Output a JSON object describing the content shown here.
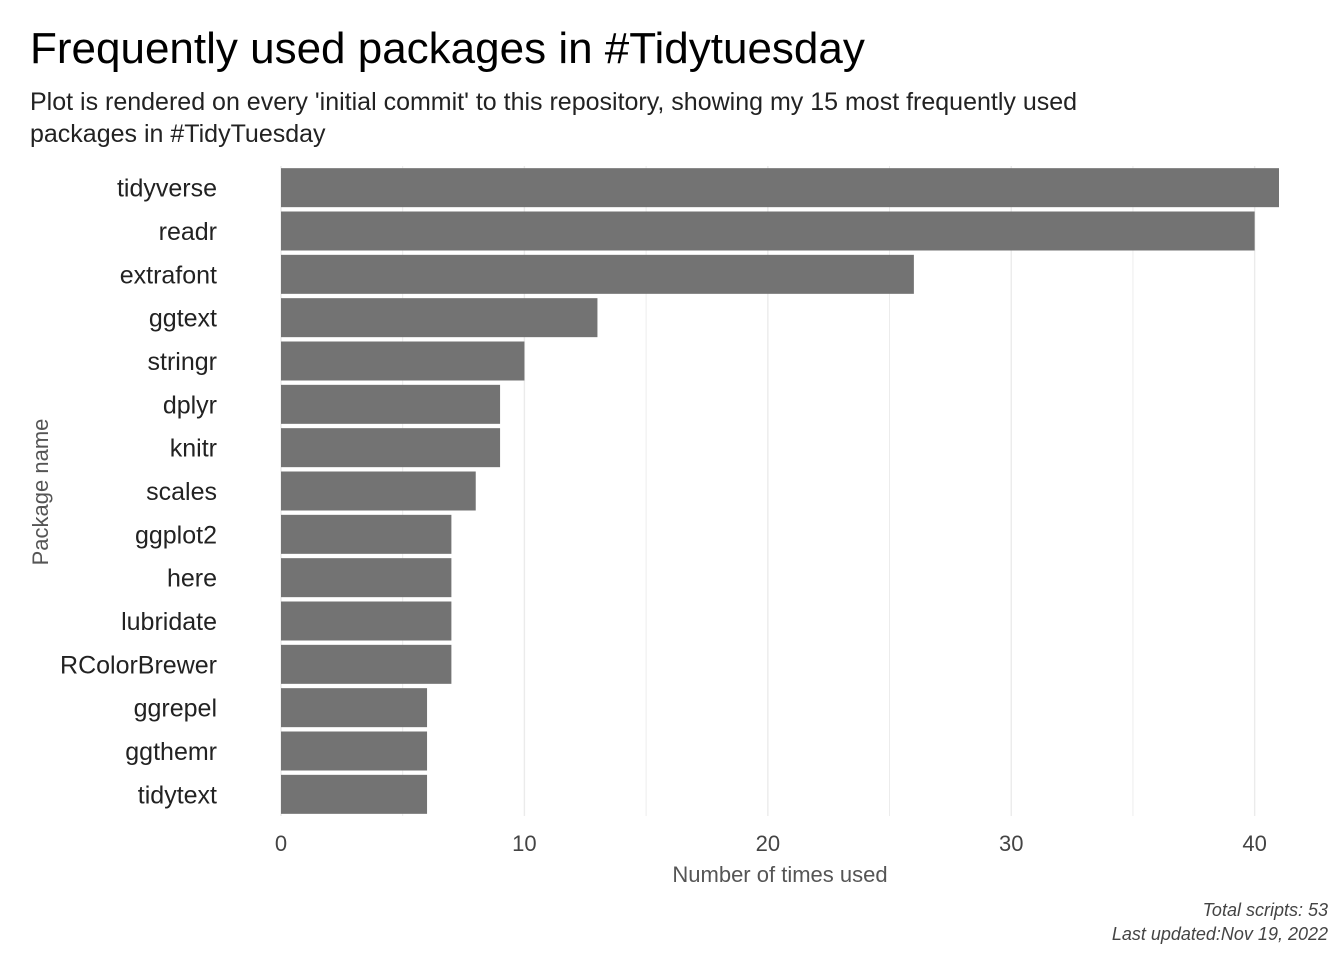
{
  "header": {
    "title": "Frequently used packages in #Tidytuesday",
    "subtitle": "Plot is rendered on every 'initial commit' to this repository, showing my 15 most frequently used packages in #TidyTuesday"
  },
  "caption": {
    "line1": "Total scripts: 53",
    "line2": "Last updated:Nov 19, 2022"
  },
  "colors": {
    "bar": "#737373",
    "grid": "#ebebeb",
    "background": "#ffffff"
  },
  "chart_data": {
    "type": "bar",
    "orientation": "horizontal",
    "categories": [
      "tidyverse",
      "readr",
      "extrafont",
      "ggtext",
      "stringr",
      "dplyr",
      "knitr",
      "scales",
      "ggplot2",
      "here",
      "lubridate",
      "RColorBrewer",
      "ggrepel",
      "ggthemr",
      "tidytext"
    ],
    "values": [
      41,
      40,
      26,
      13,
      10,
      9,
      9,
      8,
      7,
      7,
      7,
      7,
      6,
      6,
      6
    ],
    "xlabel": "Number of times used",
    "ylabel": "Package name",
    "xticks": [
      0,
      10,
      20,
      30,
      40
    ],
    "xlim": [
      0,
      41
    ],
    "grid": true,
    "legend": "none"
  }
}
